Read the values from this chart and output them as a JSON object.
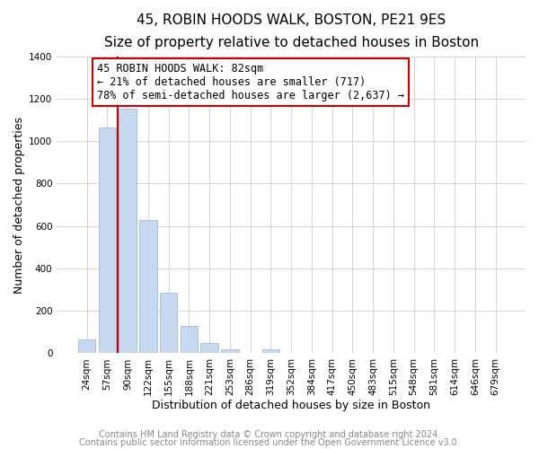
{
  "title": "45, ROBIN HOODS WALK, BOSTON, PE21 9ES",
  "subtitle": "Size of property relative to detached houses in Boston",
  "xlabel": "Distribution of detached houses by size in Boston",
  "ylabel": "Number of detached properties",
  "bar_labels": [
    "24sqm",
    "57sqm",
    "90sqm",
    "122sqm",
    "155sqm",
    "188sqm",
    "221sqm",
    "253sqm",
    "286sqm",
    "319sqm",
    "352sqm",
    "384sqm",
    "417sqm",
    "450sqm",
    "483sqm",
    "515sqm",
    "548sqm",
    "581sqm",
    "614sqm",
    "646sqm",
    "679sqm"
  ],
  "bar_heights": [
    65,
    1065,
    1155,
    630,
    285,
    130,
    47,
    20,
    0,
    20,
    0,
    0,
    0,
    0,
    0,
    0,
    0,
    0,
    0,
    0,
    0
  ],
  "bar_color": "#c6d9f0",
  "bar_edge_color": "#a0bcd8",
  "vline_color": "#cc0000",
  "vline_x_index": 1.5,
  "annotation_text": "45 ROBIN HOODS WALK: 82sqm\n← 21% of detached houses are smaller (717)\n78% of semi-detached houses are larger (2,637) →",
  "annotation_box_facecolor": "#ffffff",
  "annotation_box_edgecolor": "#cc0000",
  "ylim": [
    0,
    1400
  ],
  "yticks": [
    0,
    200,
    400,
    600,
    800,
    1000,
    1200,
    1400
  ],
  "footer1": "Contains HM Land Registry data © Crown copyright and database right 2024.",
  "footer2": "Contains public sector information licensed under the Open Government Licence v3.0.",
  "title_fontsize": 11,
  "subtitle_fontsize": 9.5,
  "xlabel_fontsize": 9,
  "ylabel_fontsize": 9,
  "tick_fontsize": 7.5,
  "annotation_fontsize": 8.5,
  "footer_fontsize": 7,
  "footer_color": "#888888"
}
